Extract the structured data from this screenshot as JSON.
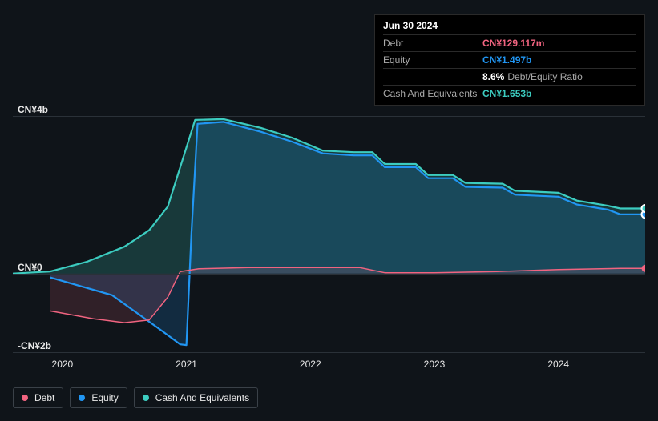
{
  "chart": {
    "type": "area",
    "background_color": "#0f1419",
    "xlim": [
      2019.6,
      2024.7
    ],
    "ylim": [
      -2,
      4
    ],
    "ylabels": [
      "CN¥4b",
      "CN¥0",
      "-CN¥2b"
    ],
    "yticks": [
      4,
      0,
      -2
    ],
    "xlabels": [
      "2020",
      "2021",
      "2022",
      "2023",
      "2024"
    ],
    "xticks": [
      2020,
      2021,
      2022,
      2023,
      2024
    ],
    "grid_color": "#2a3138",
    "label_fontsize": 12,
    "series": {
      "debt": {
        "label": "Debt",
        "stroke": "#f16480",
        "fill": "rgba(241,100,128,0.15)",
        "fill_to": 0,
        "stroke_width": 1.5,
        "points": [
          [
            2019.9,
            -0.95
          ],
          [
            2020.25,
            -1.15
          ],
          [
            2020.5,
            -1.25
          ],
          [
            2020.7,
            -1.18
          ],
          [
            2020.85,
            -0.6
          ],
          [
            2020.95,
            0.05
          ],
          [
            2021.1,
            0.12
          ],
          [
            2021.5,
            0.15
          ],
          [
            2022.0,
            0.15
          ],
          [
            2022.4,
            0.15
          ],
          [
            2022.6,
            0.02
          ],
          [
            2023.0,
            0.02
          ],
          [
            2023.5,
            0.05
          ],
          [
            2024.0,
            0.1
          ],
          [
            2024.5,
            0.13
          ],
          [
            2024.7,
            0.13
          ]
        ],
        "end_marker": false
      },
      "equity": {
        "label": "Equity",
        "stroke": "#2196f3",
        "fill": "rgba(33,150,243,0.18)",
        "fill_to": 0,
        "stroke_width": 2.2,
        "points": [
          [
            2019.9,
            -0.1
          ],
          [
            2020.4,
            -0.55
          ],
          [
            2020.8,
            -1.45
          ],
          [
            2020.95,
            -1.8
          ],
          [
            2021.0,
            -1.82
          ],
          [
            2021.04,
            1.0
          ],
          [
            2021.09,
            3.8
          ],
          [
            2021.3,
            3.85
          ],
          [
            2021.6,
            3.6
          ],
          [
            2021.85,
            3.35
          ],
          [
            2022.1,
            3.05
          ],
          [
            2022.35,
            3.0
          ],
          [
            2022.5,
            3.0
          ],
          [
            2022.6,
            2.7
          ],
          [
            2022.85,
            2.7
          ],
          [
            2022.95,
            2.42
          ],
          [
            2023.15,
            2.42
          ],
          [
            2023.25,
            2.2
          ],
          [
            2023.55,
            2.18
          ],
          [
            2023.65,
            2.0
          ],
          [
            2024.0,
            1.95
          ],
          [
            2024.15,
            1.75
          ],
          [
            2024.4,
            1.62
          ],
          [
            2024.5,
            1.5
          ],
          [
            2024.7,
            1.5
          ]
        ],
        "end_marker": true
      },
      "cash": {
        "label": "Cash And Equivalents",
        "stroke": "#3cccc0",
        "fill": "rgba(60,204,192,0.20)",
        "fill_to": 0,
        "stroke_width": 2.2,
        "points": [
          [
            2019.6,
            0.0
          ],
          [
            2019.9,
            0.05
          ],
          [
            2020.2,
            0.3
          ],
          [
            2020.5,
            0.68
          ],
          [
            2020.7,
            1.1
          ],
          [
            2020.85,
            1.7
          ],
          [
            2020.98,
            3.0
          ],
          [
            2021.07,
            3.9
          ],
          [
            2021.3,
            3.92
          ],
          [
            2021.6,
            3.7
          ],
          [
            2021.85,
            3.45
          ],
          [
            2022.1,
            3.12
          ],
          [
            2022.35,
            3.08
          ],
          [
            2022.5,
            3.08
          ],
          [
            2022.6,
            2.78
          ],
          [
            2022.85,
            2.78
          ],
          [
            2022.95,
            2.5
          ],
          [
            2023.15,
            2.5
          ],
          [
            2023.25,
            2.3
          ],
          [
            2023.55,
            2.28
          ],
          [
            2023.65,
            2.1
          ],
          [
            2024.0,
            2.05
          ],
          [
            2024.15,
            1.85
          ],
          [
            2024.4,
            1.72
          ],
          [
            2024.5,
            1.65
          ],
          [
            2024.7,
            1.65
          ]
        ],
        "end_marker": true
      }
    },
    "end_marker_stroke": "#ffffff"
  },
  "info": {
    "date": "Jun 30 2024",
    "rows": [
      {
        "key": "Debt",
        "value": "CN¥129.117m",
        "color": "#f16480"
      },
      {
        "key": "Equity",
        "value": "CN¥1.497b",
        "color": "#2196f3"
      },
      {
        "key": "",
        "value": "8.6%",
        "suffix": "Debt/Equity Ratio",
        "color": "#ffffff"
      },
      {
        "key": "Cash And Equivalents",
        "value": "CN¥1.653b",
        "color": "#3cccc0"
      }
    ]
  },
  "legend": {
    "items": [
      {
        "label": "Debt",
        "color": "#f16480"
      },
      {
        "label": "Equity",
        "color": "#2196f3"
      },
      {
        "label": "Cash And Equivalents",
        "color": "#3cccc0"
      }
    ]
  }
}
